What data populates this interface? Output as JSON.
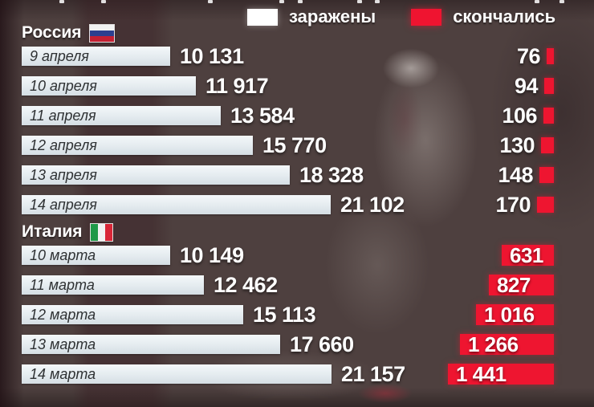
{
  "legend": {
    "infected_label": "заражены",
    "deaths_label": "скончались"
  },
  "colors": {
    "deaths_red": "#ef1430",
    "infected_swatch": "#ffffff"
  },
  "chart_data": {
    "type": "bar",
    "orientation": "horizontal",
    "legend_entries": [
      "заражены",
      "скончались"
    ],
    "legend_position": "top",
    "axis": {
      "infected_max": 21157,
      "deaths_max": 1441
    },
    "sections": [
      {
        "country": "Россия",
        "flag_icon": "russia-flag",
        "deaths_label_position": "outside",
        "rows": [
          {
            "date": "9 апреля",
            "infected": 10131,
            "infected_text": "10 131",
            "deaths": 76,
            "deaths_text": "76"
          },
          {
            "date": "10 апреля",
            "infected": 11917,
            "infected_text": "11 917",
            "deaths": 94,
            "deaths_text": "94"
          },
          {
            "date": "11 апреля",
            "infected": 13584,
            "infected_text": "13 584",
            "deaths": 106,
            "deaths_text": "106"
          },
          {
            "date": "12 апреля",
            "infected": 15770,
            "infected_text": "15 770",
            "deaths": 130,
            "deaths_text": "130"
          },
          {
            "date": "13 апреля",
            "infected": 18328,
            "infected_text": "18 328",
            "deaths": 148,
            "deaths_text": "148"
          },
          {
            "date": "14 апреля",
            "infected": 21102,
            "infected_text": "21 102",
            "deaths": 170,
            "deaths_text": "170"
          }
        ]
      },
      {
        "country": "Италия",
        "flag_icon": "italy-flag",
        "deaths_label_position": "inside",
        "rows": [
          {
            "date": "10 марта",
            "infected": 10149,
            "infected_text": "10 149",
            "deaths": 631,
            "deaths_text": "631"
          },
          {
            "date": "11 марта",
            "infected": 12462,
            "infected_text": "12 462",
            "deaths": 827,
            "deaths_text": "827"
          },
          {
            "date": "12 марта",
            "infected": 15113,
            "infected_text": "15 113",
            "deaths": 1016,
            "deaths_text": "1 016"
          },
          {
            "date": "13 марта",
            "infected": 17660,
            "infected_text": "17 660",
            "deaths": 1266,
            "deaths_text": "1 266"
          },
          {
            "date": "14 марта",
            "infected": 21157,
            "infected_text": "21 157",
            "deaths": 1441,
            "deaths_text": "1 441"
          }
        ]
      }
    ]
  }
}
